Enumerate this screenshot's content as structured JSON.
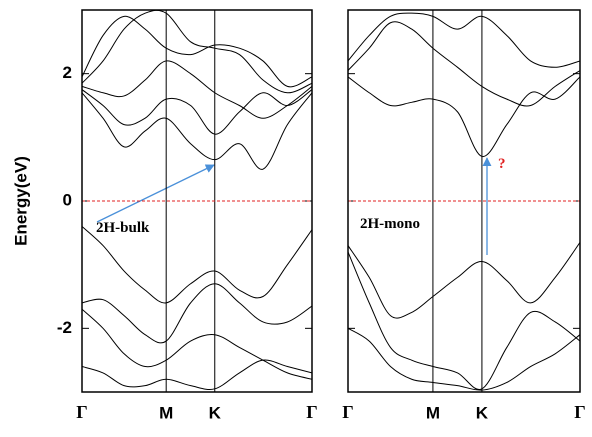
{
  "chart_data": [
    {
      "type": "line",
      "ylabel": "Energy(eV)",
      "annotation": "2H-bulk",
      "x": [
        0,
        0.25,
        0.5,
        0.75,
        1,
        1.29,
        1.577,
        1.87,
        2.15,
        2.44,
        2.732
      ],
      "xlim": [
        0,
        2.732
      ],
      "xticks": [
        {
          "value": 0,
          "label": "Γ"
        },
        {
          "value": 1,
          "label": "M"
        },
        {
          "value": 1.577,
          "label": "K"
        },
        {
          "value": 2.732,
          "label": "Γ"
        }
      ],
      "ylim": [
        -3,
        3
      ],
      "yticks": [
        -2,
        0,
        2
      ],
      "reference_line": 0,
      "reference_color": "#e02020",
      "series": [
        {
          "color": "#000000",
          "values": [
            1.7,
            1.3,
            0.85,
            1.1,
            1.3,
            0.9,
            0.65,
            0.9,
            0.5,
            1.2,
            1.7
          ]
        },
        {
          "color": "#000000",
          "values": [
            1.75,
            1.5,
            1.2,
            1.3,
            1.6,
            1.5,
            1.05,
            1.4,
            1.7,
            1.5,
            1.75
          ]
        },
        {
          "color": "#000000",
          "values": [
            1.8,
            1.7,
            1.65,
            1.9,
            2.2,
            2.0,
            1.7,
            1.5,
            1.3,
            1.5,
            1.8
          ]
        },
        {
          "color": "#000000",
          "values": [
            1.85,
            2.2,
            2.7,
            2.95,
            2.95,
            2.5,
            2.4,
            2.3,
            1.9,
            1.7,
            1.85
          ]
        },
        {
          "color": "#000000",
          "values": [
            1.95,
            2.6,
            2.9,
            2.7,
            2.4,
            2.3,
            2.45,
            2.4,
            2.2,
            1.8,
            1.95
          ]
        },
        {
          "color": "#000000",
          "values": [
            -0.4,
            -0.7,
            -1.1,
            -1.4,
            -1.6,
            -1.3,
            -1.1,
            -1.4,
            -1.5,
            -1.0,
            -0.45
          ]
        },
        {
          "color": "#000000",
          "values": [
            -1.6,
            -1.55,
            -1.8,
            -2.1,
            -2.2,
            -1.6,
            -1.3,
            -1.6,
            -1.9,
            -1.9,
            -1.65
          ]
        },
        {
          "color": "#000000",
          "values": [
            -1.7,
            -2.0,
            -2.4,
            -2.6,
            -2.5,
            -2.2,
            -2.1,
            -2.3,
            -2.5,
            -2.7,
            -2.8
          ]
        },
        {
          "color": "#000000",
          "values": [
            -2.6,
            -2.7,
            -2.9,
            -2.9,
            -2.8,
            -2.9,
            -2.95,
            -2.7,
            -2.5,
            -2.6,
            -2.7
          ]
        }
      ]
    },
    {
      "type": "line",
      "annotation": "2H-mono",
      "marker_text": "?",
      "x": [
        0,
        0.25,
        0.5,
        0.75,
        1,
        1.29,
        1.577,
        1.87,
        2.15,
        2.44,
        2.732
      ],
      "xlim": [
        0,
        2.732
      ],
      "xticks": [
        {
          "value": 0,
          "label": "Γ"
        },
        {
          "value": 1,
          "label": "M"
        },
        {
          "value": 1.577,
          "label": "K"
        },
        {
          "value": 2.732,
          "label": "Γ"
        }
      ],
      "ylim": [
        -3,
        3
      ],
      "yticks": [
        -2,
        0,
        2
      ],
      "reference_line": 0,
      "reference_color": "#e02020",
      "series": [
        {
          "color": "#000000",
          "values": [
            1.95,
            1.7,
            1.5,
            1.55,
            1.6,
            1.4,
            0.7,
            1.2,
            1.7,
            1.6,
            1.95
          ]
        },
        {
          "color": "#000000",
          "values": [
            2.05,
            2.4,
            2.8,
            2.7,
            2.4,
            2.1,
            1.8,
            1.6,
            1.5,
            1.8,
            2.05
          ]
        },
        {
          "color": "#000000",
          "values": [
            2.2,
            2.6,
            2.9,
            2.95,
            2.9,
            2.7,
            2.9,
            2.6,
            2.2,
            2.1,
            2.2
          ]
        },
        {
          "color": "#000000",
          "values": [
            -0.7,
            -1.2,
            -1.8,
            -1.75,
            -1.5,
            -1.2,
            -0.95,
            -1.25,
            -1.6,
            -1.2,
            -0.65
          ]
        },
        {
          "color": "#000000",
          "values": [
            -0.8,
            -1.6,
            -2.3,
            -2.5,
            -2.6,
            -2.7,
            -2.95,
            -2.3,
            -1.75,
            -1.9,
            -2.2
          ]
        },
        {
          "color": "#000000",
          "values": [
            -2.0,
            -2.2,
            -2.6,
            -2.8,
            -2.85,
            -2.9,
            -2.97,
            -2.85,
            -2.6,
            -2.4,
            -2.1
          ]
        }
      ]
    }
  ]
}
